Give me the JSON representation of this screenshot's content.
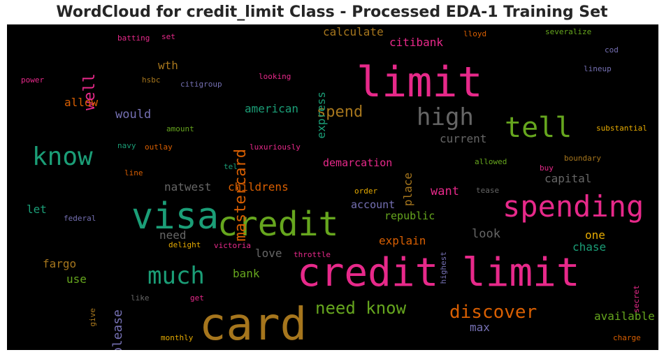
{
  "chart_data": {
    "type": "wordcloud",
    "title": "WordCloud for credit_limit Class - Processed EDA-1 Training Set",
    "background": "#000000",
    "palette": [
      "#e7298a",
      "#66a61e",
      "#1b9e77",
      "#a6761d",
      "#d95f02",
      "#7570b3",
      "#666666",
      "#e6ab02"
    ],
    "words": [
      {
        "text": "card",
        "weight": 0.95,
        "color": "#a6761d"
      },
      {
        "text": "credit limit",
        "weight": 0.88,
        "color": "#e7298a"
      },
      {
        "text": "limit",
        "weight": 0.85,
        "color": "#e7298a"
      },
      {
        "text": "visa",
        "weight": 0.72,
        "color": "#1b9e77"
      },
      {
        "text": "credit",
        "weight": 0.72,
        "color": "#66a61e"
      },
      {
        "text": "spending",
        "weight": 0.62,
        "color": "#e7298a"
      },
      {
        "text": "tell",
        "weight": 0.55,
        "color": "#66a61e"
      },
      {
        "text": "know",
        "weight": 0.52,
        "color": "#1b9e77"
      },
      {
        "text": "much",
        "weight": 0.5,
        "color": "#1b9e77"
      },
      {
        "text": "high",
        "weight": 0.5,
        "color": "#666666"
      },
      {
        "text": "mastercard",
        "weight": 0.35,
        "color": "#d95f02"
      },
      {
        "text": "need know",
        "weight": 0.38,
        "color": "#66a61e"
      },
      {
        "text": "discover",
        "weight": 0.38,
        "color": "#d95f02"
      },
      {
        "text": "spend",
        "weight": 0.3,
        "color": "#a6761d"
      },
      {
        "text": "well",
        "weight": 0.3,
        "color": "#e7298a"
      },
      {
        "text": "express",
        "weight": 0.25,
        "color": "#1b9e77"
      },
      {
        "text": "citibank",
        "weight": 0.25,
        "color": "#e7298a"
      },
      {
        "text": "calculate",
        "weight": 0.24,
        "color": "#a6761d"
      },
      {
        "text": "please",
        "weight": 0.27,
        "color": "#7570b3"
      },
      {
        "text": "place",
        "weight": 0.25,
        "color": "#a6761d"
      },
      {
        "text": "american",
        "weight": 0.24,
        "color": "#1b9e77"
      },
      {
        "text": "fargo",
        "weight": 0.23,
        "color": "#a6761d"
      },
      {
        "text": "capital",
        "weight": 0.23,
        "color": "#666666"
      },
      {
        "text": "available",
        "weight": 0.23,
        "color": "#66a61e"
      },
      {
        "text": "would",
        "weight": 0.23,
        "color": "#7570b3"
      },
      {
        "text": "wth",
        "weight": 0.21,
        "color": "#a6761d"
      },
      {
        "text": "want",
        "weight": 0.22,
        "color": "#e7298a"
      },
      {
        "text": "look",
        "weight": 0.22,
        "color": "#666666"
      },
      {
        "text": "max",
        "weight": 0.22,
        "color": "#7570b3"
      },
      {
        "text": "current",
        "weight": 0.22,
        "color": "#666666"
      },
      {
        "text": "natwest",
        "weight": 0.21,
        "color": "#666666"
      },
      {
        "text": "childrens",
        "weight": 0.21,
        "color": "#d95f02"
      },
      {
        "text": "allow",
        "weight": 0.21,
        "color": "#d95f02"
      },
      {
        "text": "let",
        "weight": 0.21,
        "color": "#1b9e77"
      },
      {
        "text": "use",
        "weight": 0.21,
        "color": "#66a61e"
      },
      {
        "text": "love",
        "weight": 0.21,
        "color": "#666666"
      },
      {
        "text": "bank",
        "weight": 0.21,
        "color": "#66a61e"
      },
      {
        "text": "explain",
        "weight": 0.21,
        "color": "#d95f02"
      },
      {
        "text": "chase",
        "weight": 0.21,
        "color": "#1b9e77"
      },
      {
        "text": "one",
        "weight": 0.21,
        "color": "#e6ab02"
      },
      {
        "text": "need",
        "weight": 0.21,
        "color": "#666666"
      },
      {
        "text": "demarcation",
        "weight": 0.2,
        "color": "#e7298a"
      },
      {
        "text": "account",
        "weight": 0.21,
        "color": "#7570b3"
      },
      {
        "text": "republic",
        "weight": 0.21,
        "color": "#66a61e"
      },
      {
        "text": "batting",
        "weight": 0.14,
        "color": "#e7298a"
      },
      {
        "text": "set",
        "weight": 0.14,
        "color": "#e7298a"
      },
      {
        "text": "lloyd",
        "weight": 0.14,
        "color": "#d95f02"
      },
      {
        "text": "severalize",
        "weight": 0.14,
        "color": "#66a61e"
      },
      {
        "text": "cod",
        "weight": 0.14,
        "color": "#7570b3"
      },
      {
        "text": "lineup",
        "weight": 0.14,
        "color": "#7570b3"
      },
      {
        "text": "power",
        "weight": 0.14,
        "color": "#e7298a"
      },
      {
        "text": "hsbc",
        "weight": 0.14,
        "color": "#a6761d"
      },
      {
        "text": "citigroup",
        "weight": 0.14,
        "color": "#7570b3"
      },
      {
        "text": "looking",
        "weight": 0.14,
        "color": "#e7298a"
      },
      {
        "text": "amount",
        "weight": 0.14,
        "color": "#66a61e"
      },
      {
        "text": "navy",
        "weight": 0.14,
        "color": "#1b9e77"
      },
      {
        "text": "outlay",
        "weight": 0.14,
        "color": "#d95f02"
      },
      {
        "text": "luxuriously",
        "weight": 0.14,
        "color": "#e7298a"
      },
      {
        "text": "substantial",
        "weight": 0.14,
        "color": "#e6ab02"
      },
      {
        "text": "boundary",
        "weight": 0.14,
        "color": "#a6761d"
      },
      {
        "text": "allowed",
        "weight": 0.14,
        "color": "#66a61e"
      },
      {
        "text": "buy",
        "weight": 0.14,
        "color": "#e7298a"
      },
      {
        "text": "tel",
        "weight": 0.14,
        "color": "#1b9e77"
      },
      {
        "text": "line",
        "weight": 0.14,
        "color": "#d95f02"
      },
      {
        "text": "order",
        "weight": 0.14,
        "color": "#e6ab02"
      },
      {
        "text": "tease",
        "weight": 0.14,
        "color": "#666666"
      },
      {
        "text": "federal",
        "weight": 0.14,
        "color": "#7570b3"
      },
      {
        "text": "highest",
        "weight": 0.14,
        "color": "#7570b3"
      },
      {
        "text": "delight",
        "weight": 0.14,
        "color": "#e6ab02"
      },
      {
        "text": "victoria",
        "weight": 0.14,
        "color": "#e7298a"
      },
      {
        "text": "throttle",
        "weight": 0.14,
        "color": "#e7298a"
      },
      {
        "text": "secret",
        "weight": 0.14,
        "color": "#e7298a"
      },
      {
        "text": "give",
        "weight": 0.14,
        "color": "#a6761d"
      },
      {
        "text": "like",
        "weight": 0.14,
        "color": "#666666"
      },
      {
        "text": "get",
        "weight": 0.14,
        "color": "#e7298a"
      },
      {
        "text": "monthly",
        "weight": 0.14,
        "color": "#e6ab02"
      },
      {
        "text": "charge",
        "weight": 0.14,
        "color": "#d95f02"
      }
    ]
  }
}
